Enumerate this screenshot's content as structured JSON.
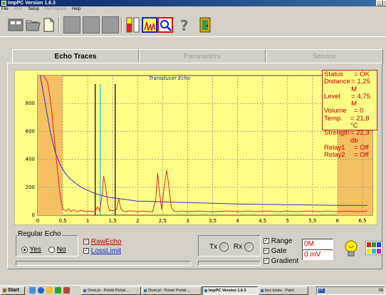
{
  "window": {
    "title": "ImpPC Version 1.6.3",
    "min": "_",
    "close": "×"
  },
  "menu": [
    {
      "label": "File",
      "enabled": true
    },
    {
      "label": "Print",
      "enabled": false
    },
    {
      "label": "Setup",
      "enabled": true
    },
    {
      "label": "ReProgram",
      "enabled": false
    },
    {
      "label": "Help",
      "enabled": true
    }
  ],
  "tabs": {
    "echo": "Echo Traces",
    "params": "Parameters",
    "service": "Service"
  },
  "chart_data": {
    "type": "line",
    "title": "Transducer Echo",
    "xlim": [
      0,
      6.7
    ],
    "ylim": [
      0,
      1000
    ],
    "x_ticks": [
      0,
      0.5,
      1,
      1.5,
      2,
      2.5,
      3,
      3.5,
      4,
      4.5,
      5,
      5.5,
      6,
      6.5
    ],
    "x_tick_labels": [
      "0",
      "0,5",
      "1",
      "1,5",
      "2",
      "2,5",
      "3",
      "3,5",
      "4",
      "4,5",
      "5",
      "5,5",
      "6",
      "6,5"
    ],
    "y_ticks": [
      0,
      200,
      400,
      600,
      800
    ],
    "grid": true,
    "deadzones": [
      [
        0,
        0.5
      ],
      [
        6,
        6.7
      ]
    ],
    "markers": [
      {
        "x": 1.15,
        "color": "#000000"
      },
      {
        "x": 1.25,
        "color": "#22c4d8"
      },
      {
        "x": 1.55,
        "color": "#000000"
      }
    ],
    "series": [
      {
        "color": "#ee2222",
        "x": [
          0.05,
          0.12,
          0.2,
          0.27,
          0.33,
          0.4,
          0.45,
          0.5,
          0.56,
          0.62,
          0.66,
          0.72,
          0.78,
          0.85,
          0.92,
          0.98,
          1.04,
          1.1,
          1.15,
          1.2,
          1.24,
          1.28,
          1.32,
          1.36,
          1.4,
          1.44,
          1.48,
          1.52,
          1.58,
          1.62,
          1.66,
          1.7,
          1.76,
          1.8,
          1.9,
          2.0,
          2.1,
          2.2,
          2.3,
          2.36,
          2.4,
          2.44,
          2.48,
          2.53,
          2.58,
          2.62,
          2.67,
          2.72,
          2.8,
          2.9,
          3.0,
          3.2,
          3.5,
          3.8,
          4.0,
          4.2,
          4.4,
          4.6,
          4.8,
          5.0,
          5.2,
          5.4,
          5.6,
          5.8,
          6.0,
          6.2,
          6.4,
          6.6
        ],
        "y": [
          1000,
          1000,
          950,
          780,
          560,
          300,
          140,
          45,
          30,
          45,
          25,
          40,
          25,
          35,
          30,
          25,
          30,
          25,
          30,
          60,
          30,
          120,
          280,
          200,
          80,
          30,
          35,
          30,
          40,
          120,
          50,
          30,
          25,
          30,
          30,
          25,
          30,
          25,
          25,
          110,
          300,
          150,
          40,
          200,
          320,
          220,
          60,
          30,
          25,
          30,
          25,
          30,
          25,
          30,
          25,
          30,
          25,
          30,
          25,
          30,
          25,
          30,
          25,
          30,
          25,
          30,
          25,
          30
        ]
      },
      {
        "color": "#3333cc",
        "x": [
          0.05,
          0.15,
          0.25,
          0.35,
          0.45,
          0.55,
          0.65,
          0.75,
          0.85,
          0.95,
          1.05,
          1.15,
          1.25,
          1.4,
          1.6,
          1.8,
          2.0,
          2.2,
          2.5,
          3.0,
          3.5,
          4.0,
          5.0,
          6.0,
          6.6
        ],
        "y": [
          1000,
          800,
          600,
          450,
          360,
          300,
          260,
          230,
          205,
          185,
          170,
          155,
          145,
          130,
          120,
          110,
          100,
          100,
          95,
          90,
          85,
          80,
          75,
          70,
          70
        ]
      }
    ]
  },
  "status": {
    "rows": [
      {
        "k": "Status",
        "v": "= OK"
      },
      {
        "k": "Distance",
        "v": "= 1,25 M"
      },
      {
        "k": "Level",
        "v": "= 4,75 M"
      },
      {
        "k": "Volume",
        "v": "= 0"
      },
      {
        "k": "Temp.",
        "v": "= 21,8 °C"
      },
      {
        "k": "Strength",
        "v": "= 22,3 db"
      },
      {
        "k": "Relay1",
        "v": "= Off"
      },
      {
        "k": "Relay2",
        "v": "= Off"
      }
    ]
  },
  "controls": {
    "regular_echo": "Regular Echo",
    "yes": "Yes",
    "no": "No",
    "raw_echo": "RawEcho",
    "loss_limit": "LossLimit",
    "tx": "Tx",
    "rx": "Rx",
    "range": "Range",
    "gate": "Gate",
    "gradient": "Gradient",
    "range_value": "0M",
    "gate_value": "0 mV",
    "checked_mark": "✓"
  },
  "taskbar": {
    "start": "Start",
    "tasks": [
      "Onet.pl - Polski Portal ...",
      "Onet.pl - Polski Portal ...",
      "ImpPC Version 1.6.3",
      "bez tytułu - Paint"
    ],
    "lang": "PL",
    "clock": "08"
  },
  "colors": {
    "plot_bg": "#ffff88",
    "deadzone": "#f5c060",
    "chart_bg": "#ffff88"
  }
}
